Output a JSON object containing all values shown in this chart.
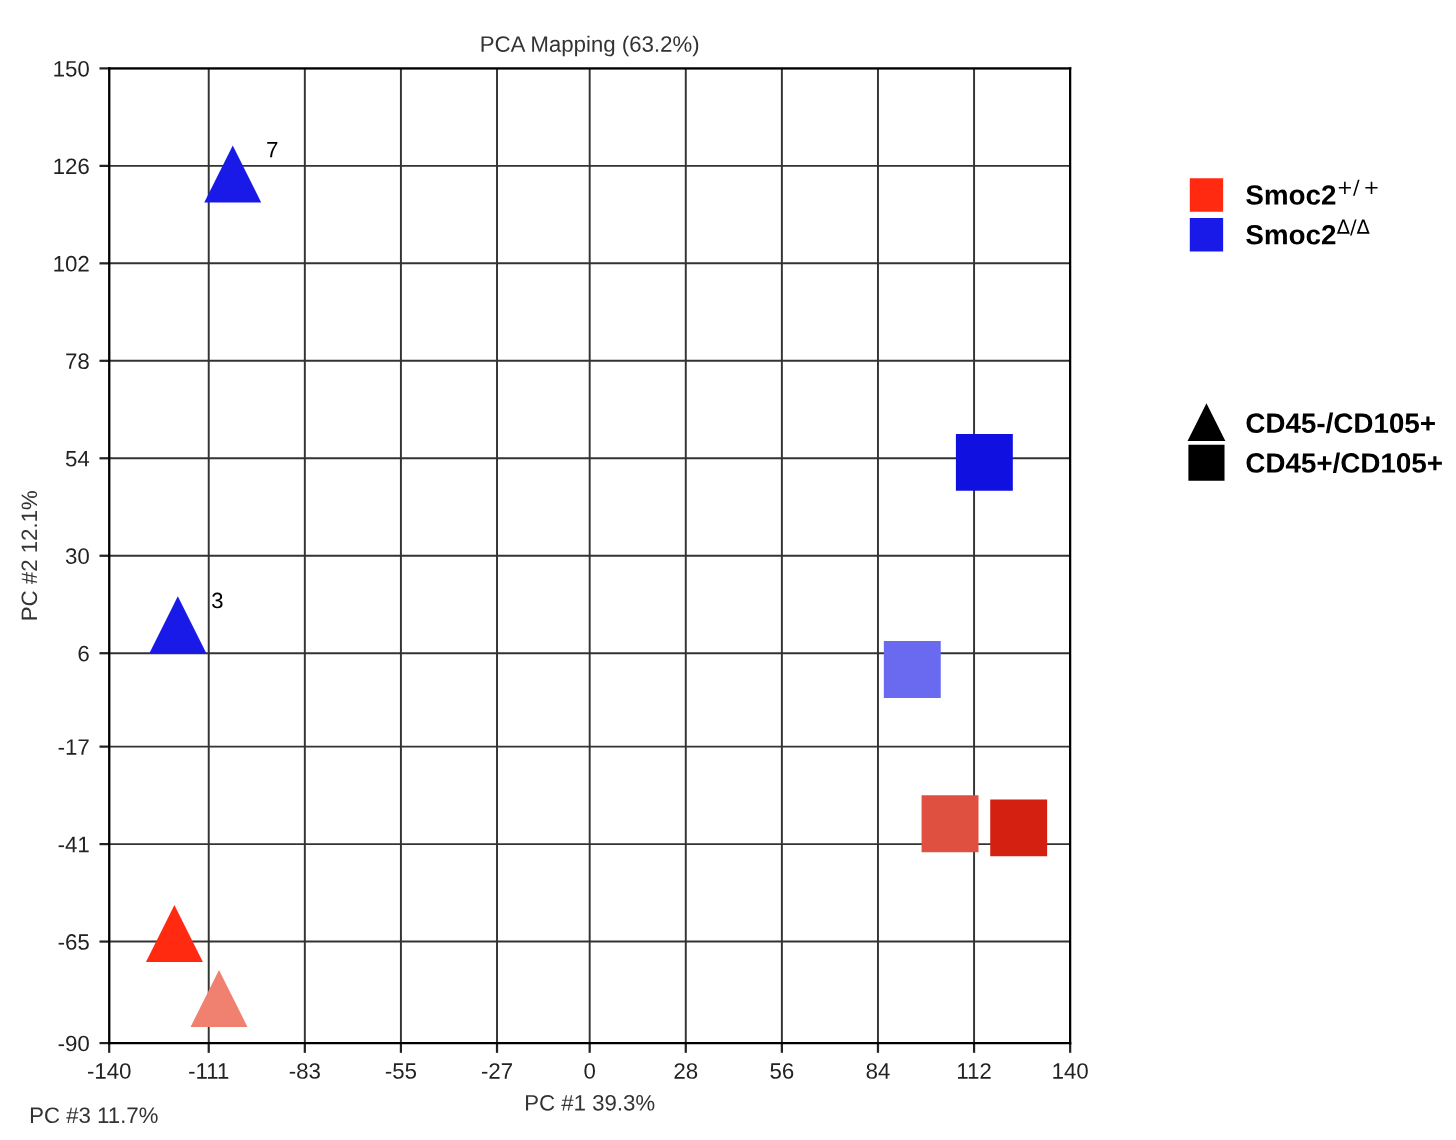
{
  "chart_data": {
    "type": "scatter",
    "title": "PCA Mapping (63.2%)",
    "xlabel": "PC #1 39.3%",
    "ylabel": "PC #2 12.1%",
    "xlim": [
      -140,
      140
    ],
    "xticks": [
      -140,
      -111,
      -83,
      -55,
      -27,
      0,
      28,
      56,
      84,
      112,
      140
    ],
    "ylim": [
      -90,
      150
    ],
    "yticks": [
      -90,
      -65,
      -41,
      -17,
      6,
      30,
      54,
      78,
      102,
      126,
      150
    ],
    "grid": true,
    "legend": "right",
    "series": [
      {
        "name": "Smoc2$^{+/+}$",
        "color": "#ff2a10",
        "x": [
          -121,
          -108,
          105,
          125
        ],
        "values": [
          -63,
          -79,
          -36,
          -37
        ],
        "colors": [
          "#ff2a10",
          "#f08070",
          "#e05040",
          "#d42010"
        ],
        "marker": [
          "triangle",
          "triangle",
          "square",
          "square"
        ]
      },
      {
        "name": "Smoc2$^{Δ/Δ}$",
        "color": "#1a1ae8",
        "x": [
          -104,
          -120,
          115,
          94
        ],
        "values": [
          124,
          13,
          53,
          2
        ],
        "colors": [
          "#1a1ae8",
          "#1a1ae8",
          "#1010e0",
          "#6a6af0"
        ],
        "marker": [
          "triangle",
          "triangle",
          "square",
          "square"
        ]
      }
    ],
    "annotations": [
      "CD45-/CD105+",
      "CD45+/CD105+",
      "PC #3 11.7%",
      {
        "text": "7",
        "x": -104,
        "y": 124
      },
      {
        "text": "3",
        "x": -120,
        "y": 13
      }
    ]
  }
}
